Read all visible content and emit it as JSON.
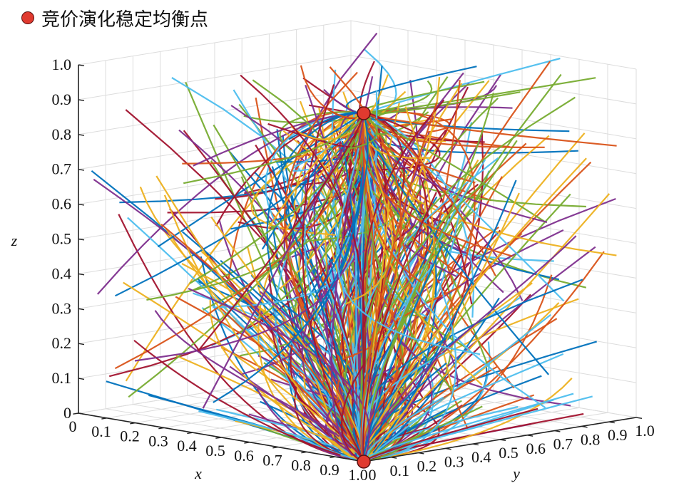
{
  "chart_data": {
    "type": "line",
    "title": "",
    "legend": {
      "placement": "top-left",
      "entries": [
        {
          "label": "竞价演化稳定均衡点",
          "marker": "filled-circle",
          "color": "#e03a2f"
        }
      ]
    },
    "axes": {
      "x": {
        "label": "x",
        "range": [
          0,
          1
        ],
        "ticks": [
          "0",
          "0.1",
          "0.2",
          "0.3",
          "0.4",
          "0.5",
          "0.6",
          "0.7",
          "0.8",
          "0.9",
          "1.0"
        ]
      },
      "y": {
        "label": "y",
        "range": [
          0,
          1
        ],
        "ticks": [
          "0",
          "0.1",
          "0.2",
          "0.3",
          "0.4",
          "0.5",
          "0.6",
          "0.7",
          "0.8",
          "0.9",
          "1.0"
        ]
      },
      "z": {
        "label": "z",
        "range": [
          0,
          1
        ],
        "ticks": [
          "0",
          "0.1",
          "0.2",
          "0.3",
          "0.4",
          "0.5",
          "0.6",
          "0.7",
          "0.8",
          "0.9",
          "1.0"
        ]
      }
    },
    "grid": true,
    "equilibrium_points": [
      {
        "x": 1,
        "y": 0,
        "z": 1
      },
      {
        "x": 1,
        "y": 0,
        "z": 0
      }
    ],
    "series_colors": [
      "#0072bd",
      "#d95319",
      "#edb120",
      "#7e2f8e",
      "#77ac30",
      "#4dbeee",
      "#a2142f"
    ]
  }
}
